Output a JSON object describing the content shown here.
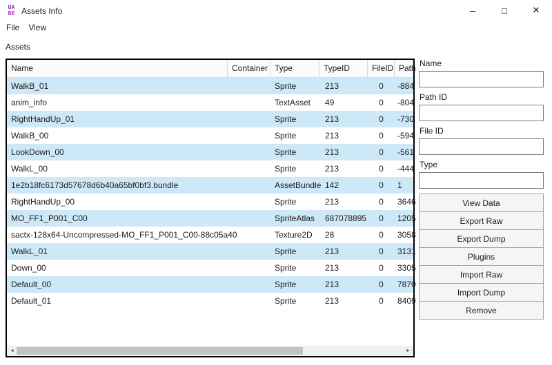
{
  "window": {
    "title": "Assets Info",
    "icon_line1": "UA",
    "icon_line2": "BE",
    "controls": {
      "minimize": "–",
      "maximize": "□",
      "close": "✕"
    }
  },
  "menu": {
    "items": [
      "File",
      "View"
    ]
  },
  "assets_label": "Assets",
  "table": {
    "columns": [
      "Name",
      "Container",
      "Type",
      "TypeID",
      "FileID",
      "Path"
    ],
    "rows": [
      {
        "name": "WalkB_01",
        "container": "",
        "type": "Sprite",
        "type_id": "213",
        "file_id": "0",
        "path_id": "-884",
        "highlighted": true
      },
      {
        "name": "anim_info",
        "container": "",
        "type": "TextAsset",
        "type_id": "49",
        "file_id": "0",
        "path_id": "-804",
        "highlighted": false
      },
      {
        "name": "RightHandUp_01",
        "container": "",
        "type": "Sprite",
        "type_id": "213",
        "file_id": "0",
        "path_id": "-730",
        "highlighted": true
      },
      {
        "name": "WalkB_00",
        "container": "",
        "type": "Sprite",
        "type_id": "213",
        "file_id": "0",
        "path_id": "-594",
        "highlighted": false
      },
      {
        "name": "LookDown_00",
        "container": "",
        "type": "Sprite",
        "type_id": "213",
        "file_id": "0",
        "path_id": "-561",
        "highlighted": true
      },
      {
        "name": "WalkL_00",
        "container": "",
        "type": "Sprite",
        "type_id": "213",
        "file_id": "0",
        "path_id": "-444",
        "highlighted": false
      },
      {
        "name": "1e2b18fc6173d57678d6b40a65bf0bf3.bundle",
        "container": "",
        "type": "AssetBundle",
        "type_id": "142",
        "file_id": "0",
        "path_id": "1",
        "highlighted": true
      },
      {
        "name": "RightHandUp_00",
        "container": "",
        "type": "Sprite",
        "type_id": "213",
        "file_id": "0",
        "path_id": "3646",
        "highlighted": false
      },
      {
        "name": "MO_FF1_P001_C00",
        "container": "",
        "type": "SpriteAtlas",
        "type_id": "687078895",
        "file_id": "0",
        "path_id": "1205",
        "highlighted": true
      },
      {
        "name": "sactx-128x64-Uncompressed-MO_FF1_P001_C00-88c05a40",
        "container": "",
        "type": "Texture2D",
        "type_id": "28",
        "file_id": "0",
        "path_id": "3058",
        "highlighted": false
      },
      {
        "name": "WalkL_01",
        "container": "",
        "type": "Sprite",
        "type_id": "213",
        "file_id": "0",
        "path_id": "3131",
        "highlighted": true
      },
      {
        "name": "Down_00",
        "container": "",
        "type": "Sprite",
        "type_id": "213",
        "file_id": "0",
        "path_id": "3305",
        "highlighted": false
      },
      {
        "name": "Default_00",
        "container": "",
        "type": "Sprite",
        "type_id": "213",
        "file_id": "0",
        "path_id": "7870",
        "highlighted": true
      },
      {
        "name": "Default_01",
        "container": "",
        "type": "Sprite",
        "type_id": "213",
        "file_id": "0",
        "path_id": "8409",
        "highlighted": false
      }
    ]
  },
  "scrollbar": {
    "left_arrow": "◄",
    "right_arrow": "►"
  },
  "panel": {
    "fields": [
      {
        "label": "Name",
        "value": ""
      },
      {
        "label": "Path ID",
        "value": ""
      },
      {
        "label": "File ID",
        "value": ""
      },
      {
        "label": "Type",
        "value": ""
      }
    ],
    "buttons": [
      "View Data",
      "Export Raw",
      "Export Dump",
      "Plugins",
      "Import Raw",
      "Import Dump",
      "Remove"
    ]
  },
  "colors": {
    "row_highlight": "#cde8f6",
    "icon_purple": "#7a2fbe",
    "icon_magenta": "#bc2fbc",
    "header_border": "#d9d9d9",
    "input_border": "#7a7a7a",
    "button_border": "#a5a5a5",
    "button_bg": "#f5f5f5",
    "scrollbar_track": "#f0f0f0",
    "scrollbar_thumb": "#c2c2c2",
    "scrollbar_arrow": "#5a5a5a"
  }
}
